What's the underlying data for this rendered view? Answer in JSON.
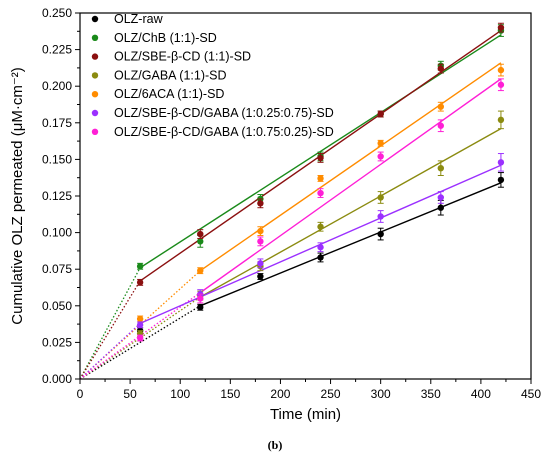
{
  "caption": "(b)",
  "chart_data": {
    "type": "scatter",
    "xlabel": "Time (min)",
    "ylabel": "Cumulative OLZ permeated (μM·cm⁻²)",
    "xlim": [
      0,
      450
    ],
    "ylim": [
      0,
      0.25
    ],
    "x_ticks": [
      "0",
      "50",
      "100",
      "150",
      "200",
      "250",
      "300",
      "350",
      "400",
      "450"
    ],
    "y_ticks": [
      "0.000",
      "0.025",
      "0.050",
      "0.075",
      "0.100",
      "0.125",
      "0.150",
      "0.175",
      "0.200",
      "0.225",
      "0.250"
    ],
    "grid": false,
    "legend_position": "top-left",
    "x": [
      60,
      120,
      180,
      240,
      300,
      360,
      420
    ],
    "series": [
      {
        "name": "OLZ-raw",
        "color": "#000000",
        "values": [
          0.033,
          0.049,
          0.07,
          0.083,
          0.099,
          0.117,
          0.136
        ],
        "errors": [
          0.002,
          0.002,
          0.002,
          0.003,
          0.004,
          0.005,
          0.005
        ],
        "fit": [
          [
            120,
            0.05
          ],
          [
            420,
            0.134
          ]
        ]
      },
      {
        "name": "OLZ/ChB (1:1)-SD",
        "color": "#1a8a1a",
        "values": [
          0.077,
          0.094,
          0.123,
          0.152,
          0.181,
          0.214,
          0.238
        ],
        "errors": [
          0.002,
          0.004,
          0.003,
          0.003,
          0.002,
          0.003,
          0.004
        ],
        "fit": [
          [
            60,
            0.076
          ],
          [
            420,
            0.235
          ]
        ]
      },
      {
        "name": "OLZ/SBE-β-CD (1:1)-SD",
        "color": "#8b1010",
        "values": [
          0.066,
          0.099,
          0.12,
          0.151,
          0.181,
          0.212,
          0.24
        ],
        "errors": [
          0.002,
          0.003,
          0.003,
          0.003,
          0.002,
          0.003,
          0.003
        ],
        "fit": [
          [
            60,
            0.067
          ],
          [
            420,
            0.238
          ]
        ]
      },
      {
        "name": "OLZ/GABA (1:1)-SD",
        "color": "#8b8b10",
        "values": [
          0.031,
          0.057,
          0.077,
          0.104,
          0.124,
          0.144,
          0.177
        ],
        "errors": [
          0.002,
          0.003,
          0.003,
          0.003,
          0.004,
          0.005,
          0.006
        ],
        "fit": [
          [
            120,
            0.056
          ],
          [
            420,
            0.171
          ]
        ]
      },
      {
        "name": "OLZ/6ACA (1:1)-SD",
        "color": "#ff8c00",
        "values": [
          0.041,
          0.074,
          0.101,
          0.137,
          0.161,
          0.186,
          0.211
        ],
        "errors": [
          0.002,
          0.002,
          0.003,
          0.002,
          0.002,
          0.003,
          0.004
        ],
        "fit": [
          [
            120,
            0.074
          ],
          [
            420,
            0.216
          ]
        ]
      },
      {
        "name": "OLZ/SBE-β-CD/GABA (1:0.25:0.75)-SD",
        "color": "#9b30ff",
        "values": [
          0.037,
          0.058,
          0.079,
          0.09,
          0.111,
          0.124,
          0.148
        ],
        "errors": [
          0.002,
          0.003,
          0.003,
          0.003,
          0.004,
          0.004,
          0.006
        ],
        "fit": [
          [
            60,
            0.038
          ],
          [
            420,
            0.146
          ]
        ]
      },
      {
        "name": "OLZ/SBE-β-CD/GABA (1:0.75:0.25)-SD",
        "color": "#ff1fd6",
        "values": [
          0.028,
          0.055,
          0.094,
          0.127,
          0.152,
          0.173,
          0.201
        ],
        "errors": [
          0.002,
          0.003,
          0.003,
          0.003,
          0.003,
          0.004,
          0.004
        ],
        "fit": [
          [
            120,
            0.059
          ],
          [
            420,
            0.205
          ]
        ]
      }
    ]
  }
}
